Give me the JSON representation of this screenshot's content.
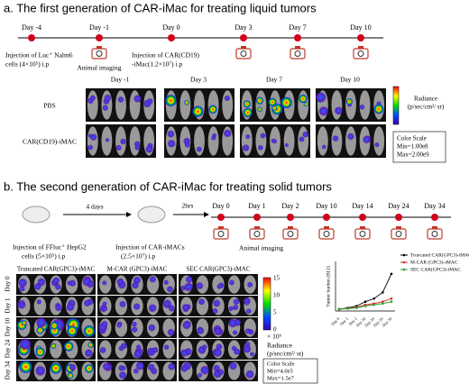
{
  "panel_a": {
    "title": "a. The first generation of CAR-iMac for treating liquid tumors",
    "days": [
      "Day -4",
      "Day -1",
      "Day 0",
      "Day 3",
      "Day 7",
      "Day 10"
    ],
    "injection_1": [
      "Injection of Luc⁺ Nalm6",
      "cells (4×10⁵) i.p"
    ],
    "imaging": "Animal imaging",
    "injection_2": [
      "Injection of CAR(CD19)",
      "-iMac(1.2×10⁷) i.p"
    ],
    "image_days": [
      "Day -1",
      "Day 3",
      "Day 7",
      "Day 10"
    ],
    "rows": [
      "PBS",
      "CAR(CD19)-iMAC"
    ],
    "radiance": [
      "Radiance",
      "(p/sec/cm²/ sr)"
    ],
    "color_scale": [
      "Color Scale",
      "Min=1.00e8",
      "Max=2.00e9"
    ]
  },
  "panel_b": {
    "title": "b. The second generation of CAR-iMac for treating solid tumors",
    "gap_1": "4 days",
    "gap_2": "2hrs",
    "days": [
      "Day 0",
      "Day 1",
      "Day 2",
      "Day 10",
      "Day 14",
      "Day 24",
      "Day 34"
    ],
    "injection_1": [
      "Injection of FFluc⁺ HepG2",
      "cells (5×10⁵) i.p"
    ],
    "injection_2": [
      "Injection of CAR-iMACs",
      "(2.5×10⁷) i.p"
    ],
    "imaging": "Animal imaging",
    "groups": [
      "Truncated CAR(GPC3)-iMAC",
      "M-CAR (GPC3)-iMAC",
      "SEC CAR(GPC3)-iMAC"
    ],
    "rows": [
      "Day 0",
      "Day 1",
      "Day 10",
      "Day 24",
      "Day 34"
    ],
    "colorbar_ticks": [
      15,
      10,
      5,
      0
    ],
    "scale_unit": "× 10⁶",
    "radiance": [
      "Radiance",
      "(p/sec/cm²/ sr)"
    ],
    "color_scale": [
      "Color Scale",
      "Min=4.0e5",
      "Max=1.5e7"
    ]
  },
  "chart_data": {
    "type": "line",
    "ylabel": "Tumor burden (BLI)",
    "categories": [
      "Day 0",
      "Day 1",
      "Day 2",
      "Day 10",
      "Day 14",
      "Day 24",
      "Day 34"
    ],
    "ylim": [
      0,
      8
    ],
    "series": [
      {
        "name": "Truncated CAR(GPC3)-iMAC",
        "color": "#000000",
        "values": [
          0.3,
          0.5,
          0.8,
          1.5,
          2,
          3,
          6
        ]
      },
      {
        "name": "M-CAR (GPC3)-iMAC",
        "color": "#d62728",
        "values": [
          0.3,
          0.4,
          0.6,
          1,
          1.2,
          1.5,
          2
        ]
      },
      {
        "name": "SEC CAR(GPC3)-iMAC",
        "color": "#2ca02c",
        "values": [
          0.3,
          0.4,
          0.5,
          0.8,
          1,
          1.2,
          1.5
        ]
      }
    ]
  }
}
